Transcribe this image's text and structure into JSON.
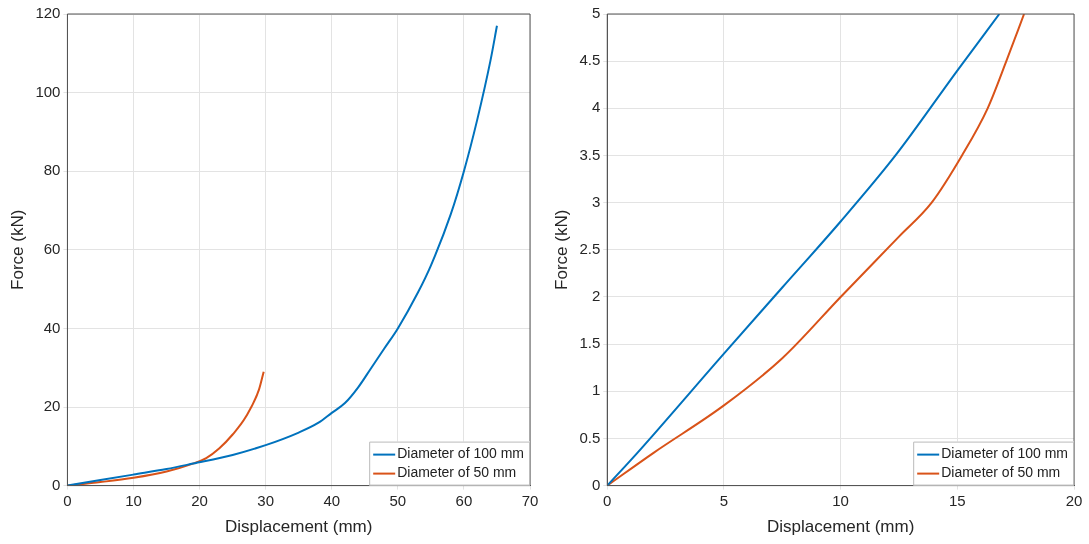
{
  "chart_data": [
    {
      "type": "line",
      "xlabel": "Displacement (mm)",
      "ylabel": "Force (kN)",
      "xlim": [
        0,
        70
      ],
      "xticks": [
        0,
        10,
        20,
        30,
        40,
        50,
        60,
        70
      ],
      "ylim": [
        0,
        120
      ],
      "yticks": [
        0,
        20,
        40,
        60,
        80,
        100,
        120
      ],
      "grid": true,
      "legend": "bottom right",
      "marker": "none",
      "line_style": "solid",
      "series": [
        {
          "name": "Diameter of 100 mm",
          "color": "#0072bd",
          "x": [
            0,
            5,
            10,
            15,
            19,
            25,
            30,
            35,
            38,
            40,
            42,
            44,
            46,
            48,
            50,
            53,
            55,
            58,
            60,
            62,
            64,
            65
          ],
          "values": [
            0,
            1.4,
            2.8,
            4.2,
            5.6,
            7.8,
            10.3,
            13.5,
            16,
            18.5,
            21,
            25,
            30,
            35,
            40,
            49,
            56,
            69,
            80,
            93,
            108,
            117
          ]
        },
        {
          "name": "Diameter of 50 mm",
          "color": "#d95319",
          "x": [
            0,
            5,
            10,
            15,
            19,
            21,
            23,
            25,
            27,
            29,
            29.7
          ],
          "values": [
            0,
            0.9,
            2,
            3.6,
            5.6,
            7,
            9.5,
            13,
            17.5,
            24.5,
            29
          ]
        }
      ]
    },
    {
      "type": "line",
      "xlabel": "Displacement (mm)",
      "ylabel": "Force (kN)",
      "xlim": [
        0,
        20
      ],
      "xticks": [
        0,
        5,
        10,
        15,
        20
      ],
      "ylim": [
        0,
        5
      ],
      "yticks": [
        0,
        0.5,
        1,
        1.5,
        2,
        2.5,
        3,
        3.5,
        4,
        4.5,
        5
      ],
      "grid": true,
      "legend": "bottom right",
      "marker": "none",
      "line_style": "solid",
      "series": [
        {
          "name": "Diameter of 100 mm",
          "color": "#0072bd",
          "x": [
            0,
            1.3,
            5,
            7.5,
            10,
            12.35,
            15,
            16.8
          ],
          "values": [
            0,
            0.35,
            1.4,
            2.1,
            2.8,
            3.5,
            4.4,
            5
          ]
        },
        {
          "name": "Diameter of 50 mm",
          "color": "#d95319",
          "x": [
            0,
            2,
            5,
            7.5,
            10,
            12.5,
            13.9,
            15.2,
            16.3,
            17.1,
            17.86
          ],
          "values": [
            0,
            0.35,
            0.85,
            1.35,
            2,
            2.64,
            3,
            3.5,
            4,
            4.5,
            5
          ]
        }
      ]
    }
  ]
}
